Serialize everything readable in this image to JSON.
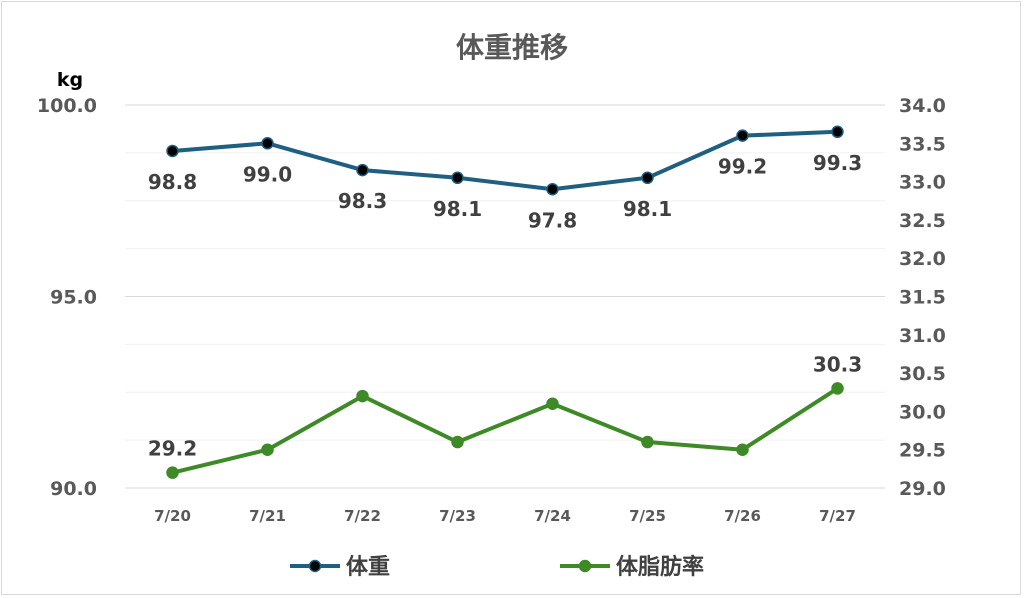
{
  "chart_data": {
    "type": "line",
    "title": "体重推移",
    "y_left_unit": "kg",
    "categories": [
      "7/20",
      "7/21",
      "7/22",
      "7/23",
      "7/24",
      "7/25",
      "7/26",
      "7/27"
    ],
    "y_left": {
      "min": 90.0,
      "max": 100.0,
      "major_ticks": [
        90.0,
        95.0,
        100.0
      ],
      "minor_step": 1.25,
      "decimals": 1
    },
    "y_right": {
      "min": 29.0,
      "max": 34.0,
      "ticks": [
        29.0,
        29.5,
        30.0,
        30.5,
        31.0,
        31.5,
        32.0,
        32.5,
        33.0,
        33.5,
        34.0
      ],
      "decimals": 1
    },
    "series": [
      {
        "name": "体重",
        "axis": "left",
        "color": "#1f5f82",
        "marker_color": "#000000",
        "values": [
          98.8,
          99.0,
          98.3,
          98.1,
          97.8,
          98.1,
          99.2,
          99.3
        ],
        "labels": [
          "98.8",
          "99.0",
          "98.3",
          "98.1",
          "97.8",
          "98.1",
          "99.2",
          "99.3"
        ],
        "label_position": "below"
      },
      {
        "name": "体脂肪率",
        "axis": "right",
        "color": "#3d8a26",
        "marker_color": "#3d8a26",
        "values": [
          29.2,
          29.5,
          30.2,
          29.6,
          30.1,
          29.6,
          29.5,
          30.3
        ],
        "labels": [
          "29.2",
          "",
          "",
          "",
          "",
          "",
          "",
          "30.3"
        ],
        "label_position": "above"
      }
    ],
    "grid": true,
    "legend": "bottom"
  }
}
